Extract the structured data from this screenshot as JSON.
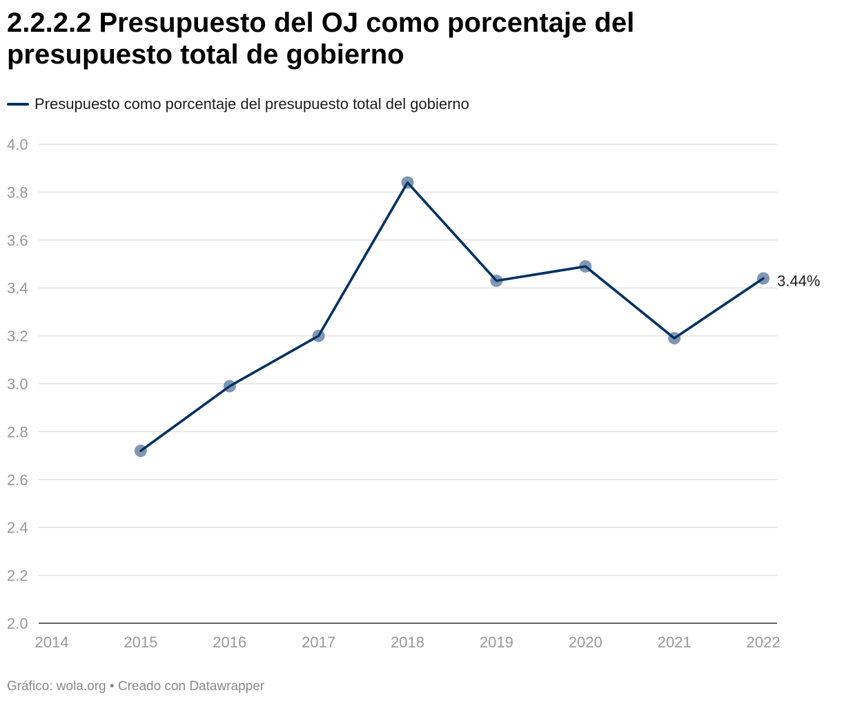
{
  "title": "2.2.2.2 Presupuesto del OJ como porcentaje del presupuesto total de gobierno",
  "legend": {
    "label": "Presupuesto como porcentaje del presupuesto total del gobierno"
  },
  "footer": "Gráfico: wola.org • Creado con Datawrapper",
  "colors": {
    "line": "#063262",
    "marker": "#7f97b2",
    "grid": "#e2e2e2",
    "axis": "#333333"
  },
  "chart_data": {
    "type": "line",
    "title": "2.2.2.2 Presupuesto del OJ como porcentaje del presupuesto total de gobierno",
    "xlabel": "",
    "ylabel": "",
    "x_ticks": [
      "2014",
      "2015",
      "2016",
      "2017",
      "2018",
      "2019",
      "2020",
      "2021",
      "2022"
    ],
    "y_ticks": [
      "2.0",
      "2.2",
      "2.4",
      "2.6",
      "2.8",
      "3.0",
      "3.2",
      "3.4",
      "3.6",
      "3.8",
      "4.0"
    ],
    "xlim": [
      2014,
      2022
    ],
    "ylim": [
      2.0,
      4.0
    ],
    "grid": true,
    "legend_position": "top-left",
    "series": [
      {
        "name": "Presupuesto como porcentaje del presupuesto total del gobierno",
        "x": [
          2015,
          2016,
          2017,
          2018,
          2019,
          2020,
          2021,
          2022
        ],
        "values": [
          2.72,
          2.99,
          3.2,
          3.84,
          3.43,
          3.49,
          3.19,
          3.44
        ]
      }
    ],
    "end_label": "3.44%"
  }
}
